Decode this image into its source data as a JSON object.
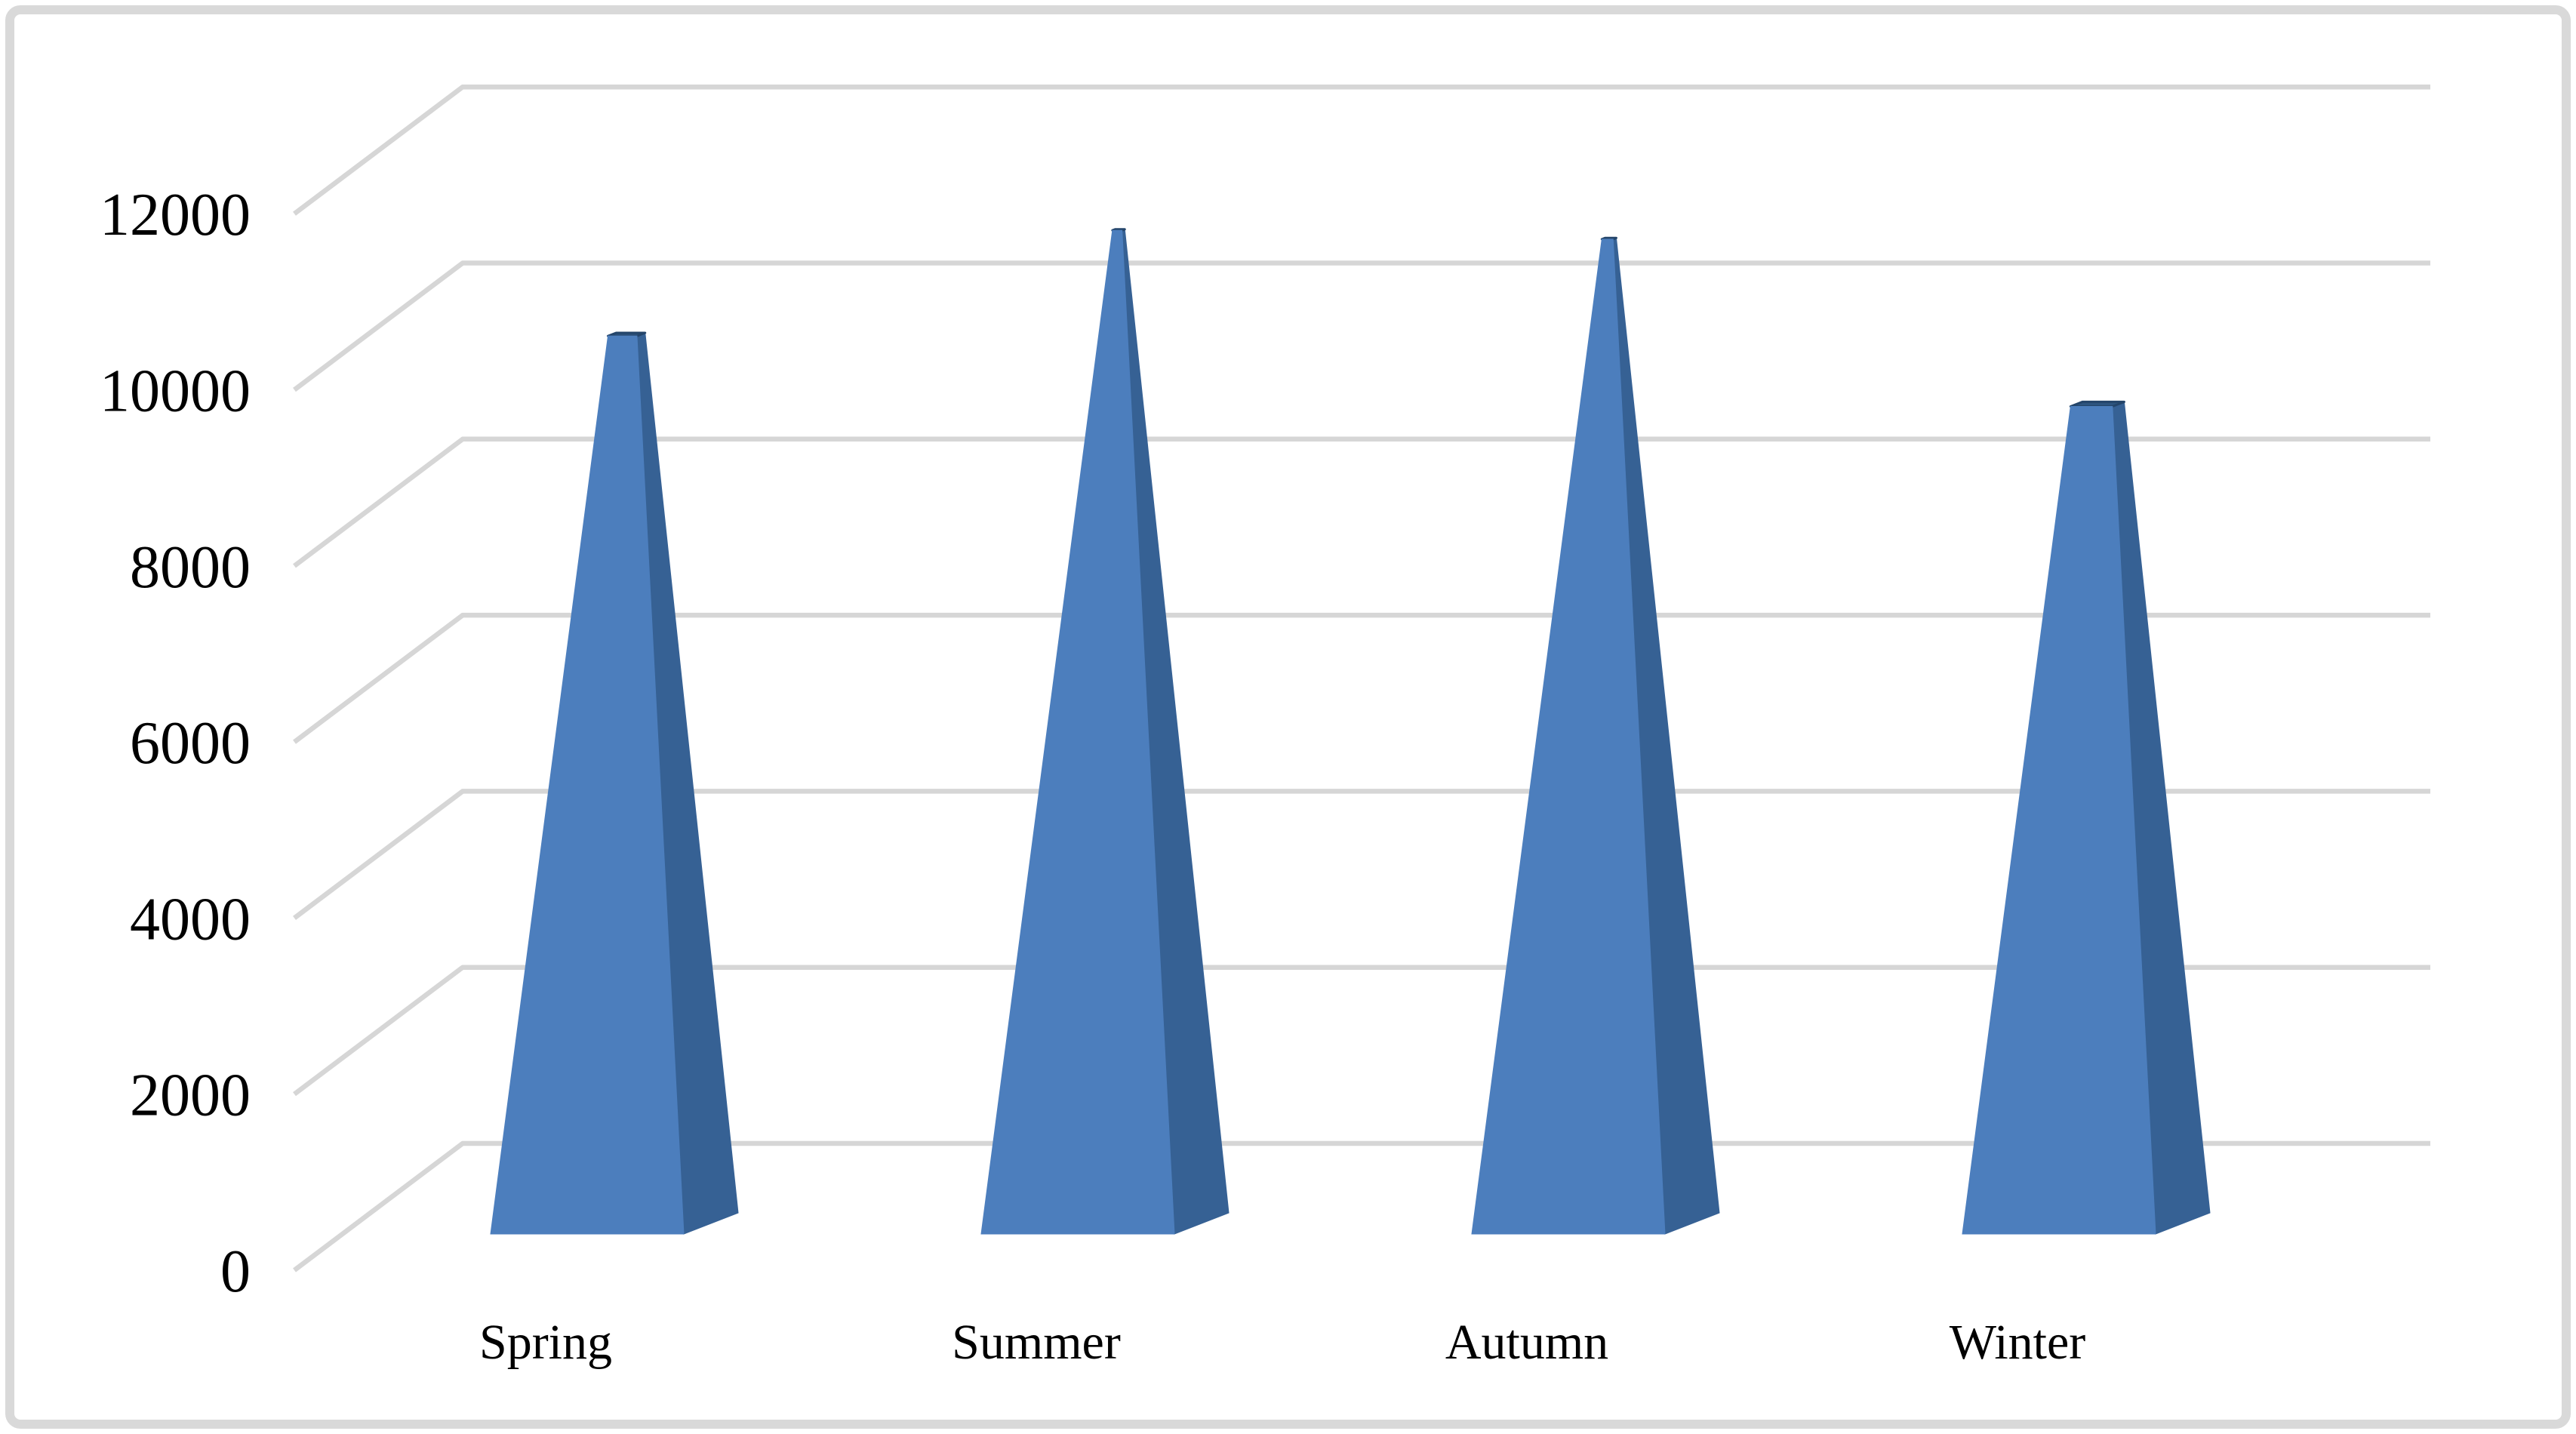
{
  "chart_data": {
    "type": "bar",
    "style": "3d-pyramid",
    "title": "",
    "xlabel": "",
    "ylabel": "",
    "categories": [
      "Spring",
      "Summer",
      "Autumn",
      "Winter"
    ],
    "values": [
      10200,
      11400,
      11300,
      9400
    ],
    "ylim": [
      0,
      12000
    ],
    "ytick_interval": 2000,
    "ytick_labels": [
      "0",
      "2000",
      "4000",
      "6000",
      "8000",
      "10000",
      "12000"
    ],
    "grid": true,
    "legend": false,
    "colors": {
      "bar_front": "#4C7EBD",
      "bar_side": "#366194",
      "bar_top": "#2D547E",
      "bar_top_edge": "#24456A",
      "gridline": "#D6D6D6",
      "text": "#000000",
      "frame_border": "#D9D9D9",
      "background": "#FFFFFF"
    }
  }
}
